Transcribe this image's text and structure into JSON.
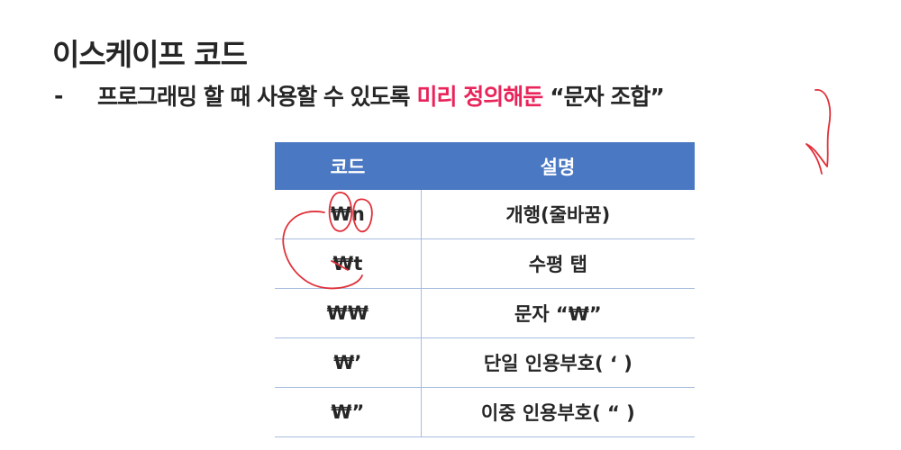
{
  "slide": {
    "title": "이스케이프 코드",
    "bullet": {
      "marker": "-",
      "text_before": "프로그래밍 할 때 사용할 수 있도록",
      "highlight": "미리 정의해둔",
      "text_after": "“문자 조합”"
    }
  },
  "table": {
    "headers": [
      "코드",
      "설명"
    ],
    "rows": [
      {
        "code": "₩n",
        "desc": "개행(줄바꿈)"
      },
      {
        "code": "₩t",
        "desc": "수평 탭"
      },
      {
        "code": "₩₩",
        "desc": "문자 “₩”"
      },
      {
        "code": "₩’",
        "desc": "단일 인용부호( ‘ )"
      },
      {
        "code": "₩”",
        "desc": "이중 인용부호( “ )"
      }
    ]
  },
  "colors": {
    "header_bg": "#4a78c2",
    "highlight": "#e8245a",
    "annotation": "#e0303a"
  }
}
